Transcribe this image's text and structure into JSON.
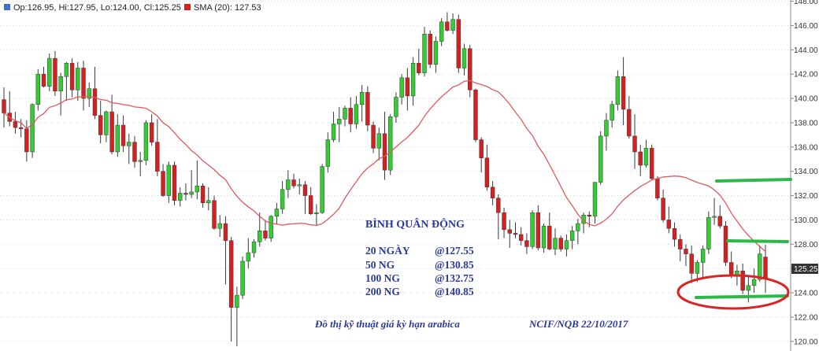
{
  "legend": {
    "ohlc_text": "Op:126.95, Hi:127.95, Lo:124.00, Cl:125.25",
    "sma_text": "SMA (20): 127.53"
  },
  "colors": {
    "up": "#33cc33",
    "down": "#d42020",
    "sma": "#e05a5a",
    "annotation": "#2b3a9a",
    "highlight_line": "#2db84a",
    "highlight_ellipse": "#dd2222",
    "last_tag_bg": "#333333"
  },
  "annotation": {
    "title": "BÌNH QUÂN ĐỘNG",
    "rows": [
      {
        "label": "20 NGÀY",
        "value": "@127.55"
      },
      {
        "label": "50 NG",
        "value": "@130.85"
      },
      {
        "label": "100 NG",
        "value": "@132.75"
      },
      {
        "label": "200 NG",
        "value": "@140.85"
      }
    ],
    "caption": "Đồ thị kỹ thuật giá kỳ hạn arabica",
    "source": "NCIF/NQB 22/10/2017"
  },
  "last_price_tag": "125.25",
  "chart_data": {
    "type": "candlestick",
    "ylim": [
      119.6,
      148.1
    ],
    "y_ticks": [
      "120.00",
      "122.00",
      "124.00",
      "126.00",
      "128.00",
      "130.00",
      "132.00",
      "134.00",
      "136.00",
      "138.00",
      "140.00",
      "142.00",
      "144.00",
      "146.00",
      "148.00"
    ],
    "grid": true,
    "sma_period": 20,
    "sma_last": 127.53,
    "last": {
      "open": 126.95,
      "high": 127.95,
      "low": 124.0,
      "close": 125.25
    },
    "ohlc": [
      [
        139.9,
        140.9,
        137.6,
        138.8
      ],
      [
        138.8,
        140.6,
        137.7,
        138.1
      ],
      [
        138.1,
        138.9,
        137.1,
        137.6
      ],
      [
        137.6,
        138.3,
        136.8,
        137.5
      ],
      [
        137.5,
        138.2,
        134.8,
        135.6
      ],
      [
        135.6,
        139.6,
        135.1,
        139.5
      ],
      [
        139.5,
        142.4,
        139.0,
        142.0
      ],
      [
        142.0,
        142.6,
        140.9,
        141.0
      ],
      [
        141.0,
        143.7,
        140.6,
        143.3
      ],
      [
        143.3,
        143.9,
        140.2,
        140.6
      ],
      [
        140.6,
        142.1,
        138.6,
        141.8
      ],
      [
        141.8,
        143.0,
        139.8,
        142.9
      ],
      [
        142.9,
        143.3,
        140.1,
        140.7
      ],
      [
        140.7,
        143.0,
        139.8,
        142.5
      ],
      [
        142.5,
        143.1,
        139.0,
        140.0
      ],
      [
        140.0,
        141.3,
        139.3,
        140.8
      ],
      [
        140.8,
        142.6,
        138.3,
        138.6
      ],
      [
        138.6,
        139.8,
        136.3,
        137.0
      ],
      [
        137.0,
        139.0,
        136.4,
        138.9
      ],
      [
        138.9,
        140.3,
        135.4,
        135.6
      ],
      [
        135.6,
        138.7,
        135.2,
        137.8
      ],
      [
        137.8,
        138.6,
        135.6,
        136.1
      ],
      [
        136.1,
        137.1,
        134.6,
        136.4
      ],
      [
        136.4,
        136.9,
        134.3,
        134.8
      ],
      [
        134.8,
        135.6,
        133.6,
        134.9
      ],
      [
        134.9,
        138.2,
        134.5,
        138.0
      ],
      [
        138.0,
        138.7,
        136.1,
        136.4
      ],
      [
        136.4,
        138.3,
        133.6,
        134.0
      ],
      [
        134.0,
        134.6,
        131.9,
        132.0
      ],
      [
        132.0,
        134.8,
        131.4,
        134.5
      ],
      [
        134.5,
        134.8,
        131.2,
        131.6
      ],
      [
        131.6,
        132.7,
        131.1,
        132.2
      ],
      [
        132.2,
        133.0,
        131.6,
        132.1
      ],
      [
        132.1,
        134.1,
        131.8,
        132.3
      ],
      [
        132.3,
        134.9,
        131.7,
        132.8
      ],
      [
        132.8,
        133.0,
        131.0,
        131.4
      ],
      [
        131.4,
        132.7,
        130.8,
        131.6
      ],
      [
        131.6,
        132.0,
        129.2,
        129.3
      ],
      [
        129.3,
        130.4,
        128.6,
        129.7
      ],
      [
        129.7,
        130.3,
        124.7,
        128.3
      ],
      [
        128.3,
        128.6,
        120.0,
        122.8
      ],
      [
        122.8,
        124.5,
        119.6,
        123.8
      ],
      [
        123.8,
        127.0,
        123.5,
        126.6
      ],
      [
        126.6,
        128.5,
        126.0,
        127.3
      ],
      [
        127.3,
        128.4,
        126.9,
        128.2
      ],
      [
        128.2,
        130.6,
        127.8,
        129.1
      ],
      [
        129.1,
        130.0,
        128.3,
        128.5
      ],
      [
        128.5,
        130.4,
        128.2,
        130.3
      ],
      [
        130.3,
        131.4,
        129.6,
        130.9
      ],
      [
        130.9,
        133.2,
        130.5,
        132.5
      ],
      [
        132.5,
        134.1,
        131.8,
        133.3
      ],
      [
        133.3,
        133.8,
        132.6,
        132.8
      ],
      [
        132.8,
        133.4,
        132.1,
        132.9
      ],
      [
        132.9,
        133.2,
        130.5,
        132.0
      ],
      [
        132.0,
        132.7,
        130.4,
        130.5
      ],
      [
        130.5,
        131.3,
        129.5,
        130.6
      ],
      [
        130.6,
        134.6,
        130.5,
        134.4
      ],
      [
        134.4,
        137.2,
        133.9,
        136.6
      ],
      [
        136.6,
        138.9,
        136.4,
        137.9
      ],
      [
        137.9,
        139.3,
        136.4,
        138.3
      ],
      [
        138.3,
        139.4,
        137.7,
        139.2
      ],
      [
        139.2,
        140.1,
        137.2,
        137.9
      ],
      [
        137.9,
        140.2,
        137.5,
        139.5
      ],
      [
        139.5,
        141.1,
        138.1,
        140.5
      ],
      [
        140.5,
        141.0,
        137.3,
        137.8
      ],
      [
        137.8,
        138.1,
        135.5,
        135.9
      ],
      [
        135.9,
        137.6,
        134.9,
        137.1
      ],
      [
        137.1,
        138.9,
        133.3,
        134.1
      ],
      [
        134.1,
        138.7,
        133.7,
        138.5
      ],
      [
        138.5,
        140.5,
        138.0,
        140.1
      ],
      [
        140.1,
        142.0,
        139.5,
        141.7
      ],
      [
        141.7,
        142.5,
        139.0,
        140.2
      ],
      [
        140.2,
        143.4,
        139.4,
        142.9
      ],
      [
        142.9,
        144.1,
        141.9,
        142.1
      ],
      [
        142.1,
        145.9,
        141.8,
        145.3
      ],
      [
        145.3,
        145.6,
        142.5,
        142.8
      ],
      [
        142.8,
        145.1,
        142.1,
        144.7
      ],
      [
        144.7,
        146.6,
        144.3,
        146.3
      ],
      [
        146.3,
        147.1,
        145.5,
        145.6
      ],
      [
        145.6,
        147.0,
        145.3,
        146.5
      ],
      [
        146.5,
        146.9,
        142.1,
        142.5
      ],
      [
        142.5,
        144.5,
        141.9,
        144.1
      ],
      [
        144.1,
        144.4,
        140.1,
        140.7
      ],
      [
        140.7,
        140.8,
        136.4,
        136.6
      ],
      [
        136.6,
        136.8,
        133.9,
        135.1
      ],
      [
        135.1,
        136.2,
        132.4,
        132.7
      ],
      [
        132.7,
        133.2,
        131.2,
        131.8
      ],
      [
        131.8,
        132.1,
        128.4,
        130.6
      ],
      [
        130.6,
        131.0,
        128.5,
        129.2
      ],
      [
        129.2,
        130.0,
        127.7,
        128.9
      ],
      [
        128.9,
        129.8,
        128.5,
        128.8
      ],
      [
        128.8,
        129.4,
        127.9,
        128.3
      ],
      [
        128.3,
        128.9,
        127.2,
        127.8
      ],
      [
        127.8,
        130.8,
        127.6,
        130.6
      ],
      [
        130.6,
        131.2,
        127.5,
        127.7
      ],
      [
        127.7,
        129.7,
        127.3,
        129.5
      ],
      [
        129.5,
        130.6,
        127.5,
        127.6
      ],
      [
        127.6,
        129.3,
        127.1,
        128.5
      ],
      [
        128.5,
        128.7,
        127.4,
        127.6
      ],
      [
        127.6,
        128.8,
        127.0,
        128.3
      ],
      [
        128.3,
        129.5,
        127.6,
        129.1
      ],
      [
        129.1,
        130.1,
        128.0,
        129.7
      ],
      [
        129.7,
        130.6,
        128.9,
        130.4
      ],
      [
        130.4,
        130.7,
        129.4,
        130.3
      ],
      [
        130.3,
        133.1,
        129.7,
        133.1
      ],
      [
        133.1,
        137.3,
        132.9,
        136.9
      ],
      [
        136.9,
        138.8,
        135.7,
        138.2
      ],
      [
        138.2,
        139.8,
        137.6,
        139.5
      ],
      [
        139.5,
        142.3,
        139.0,
        141.8
      ],
      [
        141.8,
        143.4,
        137.8,
        139.1
      ],
      [
        139.1,
        140.2,
        136.7,
        136.9
      ],
      [
        136.9,
        138.7,
        134.2,
        135.6
      ],
      [
        135.6,
        136.2,
        133.6,
        134.5
      ],
      [
        134.5,
        136.6,
        134.3,
        135.9
      ],
      [
        135.9,
        136.2,
        133.3,
        133.4
      ],
      [
        133.4,
        133.6,
        131.6,
        131.8
      ],
      [
        131.8,
        132.5,
        129.8,
        130.0
      ],
      [
        130.0,
        131.1,
        128.9,
        129.3
      ],
      [
        129.3,
        129.8,
        127.8,
        128.4
      ],
      [
        128.4,
        128.8,
        126.6,
        127.6
      ],
      [
        127.6,
        128.0,
        126.2,
        127.2
      ],
      [
        127.2,
        127.9,
        124.8,
        125.6
      ],
      [
        125.6,
        126.7,
        124.9,
        126.5
      ],
      [
        126.5,
        127.9,
        125.3,
        127.6
      ],
      [
        127.6,
        130.7,
        127.2,
        130.2
      ],
      [
        130.2,
        131.8,
        129.6,
        130.3
      ],
      [
        130.3,
        131.2,
        129.3,
        129.5
      ],
      [
        129.5,
        129.9,
        126.2,
        126.5
      ],
      [
        126.5,
        127.4,
        125.2,
        125.4
      ],
      [
        125.4,
        126.3,
        124.6,
        125.8
      ],
      [
        125.8,
        126.4,
        123.9,
        124.2
      ],
      [
        124.2,
        125.4,
        123.2,
        124.6
      ],
      [
        124.6,
        126.0,
        124.0,
        125.1
      ],
      [
        125.1,
        127.9,
        124.9,
        127.2
      ],
      [
        126.95,
        127.95,
        124.0,
        125.25
      ]
    ]
  }
}
